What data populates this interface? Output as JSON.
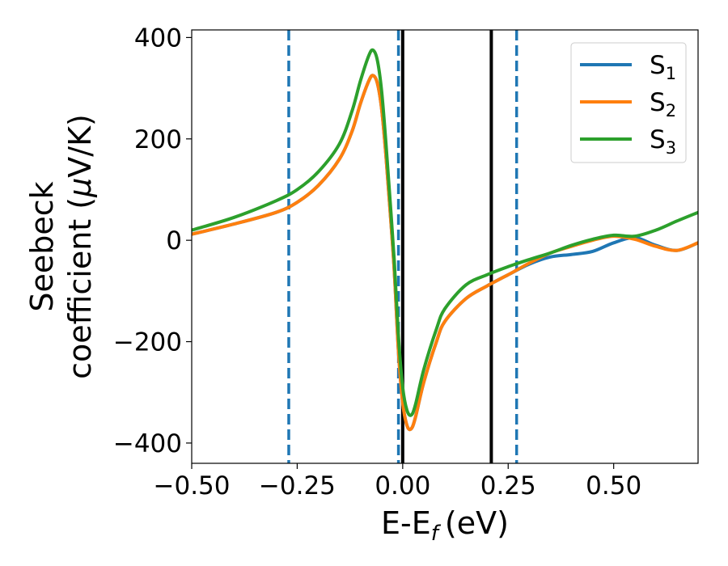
{
  "chart_data": {
    "type": "line",
    "xlabel": "E-E",
    "xlabel_sub": "f",
    "xlabel_unit": "(eV)",
    "ylabel_line1": "Seebeck",
    "ylabel_line2_prefix": "coefficient  (",
    "ylabel_mu": "μ",
    "ylabel_line2_suffix": "V/K)",
    "xlim": [
      -0.5,
      0.7
    ],
    "ylim": [
      -440,
      415
    ],
    "xticks": [
      -0.5,
      -0.25,
      0.0,
      0.25,
      0.5
    ],
    "xtick_labels": [
      "−0.50",
      "−0.25",
      "0.00",
      "0.25",
      "0.50"
    ],
    "yticks": [
      400,
      200,
      0,
      -200,
      -400
    ],
    "ytick_labels": [
      "400",
      "200",
      "0",
      "−200",
      "−400"
    ],
    "grid": false,
    "legend_position": "top-right",
    "vlines": [
      {
        "x": -0.27,
        "style": "dashed",
        "color": "#1f77b4"
      },
      {
        "x": -0.01,
        "style": "dashed",
        "color": "#1f77b4"
      },
      {
        "x": 0.27,
        "style": "dashed",
        "color": "#1f77b4"
      },
      {
        "x": 0.0,
        "style": "solid",
        "color": "#000000"
      },
      {
        "x": 0.21,
        "style": "solid",
        "color": "#000000"
      }
    ],
    "series": [
      {
        "name": "S",
        "name_sub": "1",
        "color": "#1f77b4",
        "x": [
          -0.5,
          -0.4,
          -0.3,
          -0.25,
          -0.2,
          -0.15,
          -0.12,
          -0.1,
          -0.08,
          -0.07,
          -0.06,
          -0.05,
          -0.04,
          -0.03,
          -0.02,
          -0.01,
          0.0,
          0.01,
          0.02,
          0.03,
          0.05,
          0.08,
          0.1,
          0.15,
          0.2,
          0.25,
          0.3,
          0.35,
          0.4,
          0.45,
          0.5,
          0.55,
          0.6,
          0.65,
          0.7
        ],
        "y": [
          12,
          32,
          55,
          75,
          108,
          160,
          215,
          270,
          315,
          325,
          310,
          260,
          170,
          60,
          -60,
          -220,
          -320,
          -365,
          -372,
          -350,
          -280,
          -200,
          -160,
          -115,
          -90,
          -68,
          -47,
          -33,
          -28,
          -22,
          -5,
          5,
          -10,
          -20,
          -5
        ]
      },
      {
        "name": "S",
        "name_sub": "2",
        "color": "#ff7f0e",
        "x": [
          -0.5,
          -0.4,
          -0.3,
          -0.25,
          -0.2,
          -0.15,
          -0.12,
          -0.1,
          -0.08,
          -0.07,
          -0.06,
          -0.05,
          -0.04,
          -0.03,
          -0.02,
          -0.01,
          0.0,
          0.01,
          0.02,
          0.03,
          0.05,
          0.08,
          0.1,
          0.15,
          0.2,
          0.25,
          0.3,
          0.35,
          0.4,
          0.45,
          0.5,
          0.55,
          0.6,
          0.65,
          0.7
        ],
        "y": [
          12,
          32,
          55,
          75,
          108,
          160,
          215,
          270,
          315,
          325,
          310,
          260,
          170,
          60,
          -60,
          -220,
          -320,
          -365,
          -372,
          -350,
          -280,
          -200,
          -160,
          -115,
          -90,
          -68,
          -45,
          -25,
          -12,
          0,
          8,
          2,
          -12,
          -20,
          -5
        ]
      },
      {
        "name": "S",
        "name_sub": "3",
        "color": "#2ca02c",
        "x": [
          -0.5,
          -0.4,
          -0.3,
          -0.25,
          -0.2,
          -0.15,
          -0.12,
          -0.1,
          -0.08,
          -0.07,
          -0.06,
          -0.05,
          -0.04,
          -0.03,
          -0.02,
          -0.01,
          0.0,
          0.01,
          0.02,
          0.03,
          0.05,
          0.08,
          0.1,
          0.15,
          0.2,
          0.25,
          0.3,
          0.35,
          0.4,
          0.45,
          0.5,
          0.55,
          0.6,
          0.65,
          0.7
        ],
        "y": [
          20,
          45,
          78,
          100,
          135,
          190,
          255,
          315,
          365,
          375,
          355,
          295,
          195,
          80,
          -40,
          -190,
          -290,
          -335,
          -345,
          -325,
          -255,
          -175,
          -135,
          -88,
          -68,
          -52,
          -38,
          -25,
          -10,
          2,
          10,
          8,
          20,
          38,
          55
        ]
      }
    ]
  }
}
